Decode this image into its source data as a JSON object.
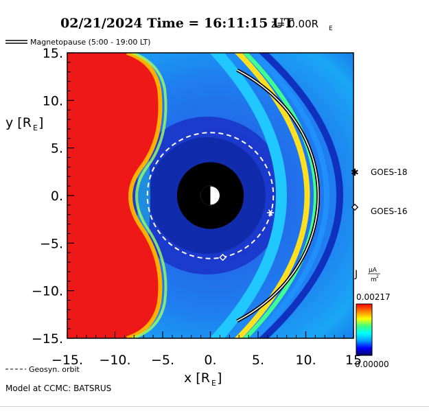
{
  "header": {
    "title": "02/21/2024 Time = 16:11:15 UT",
    "z_label": "z= 0.00R",
    "z_sub": "E"
  },
  "legend": {
    "magnetopause": "Magnetopause (5:00 - 19:00 LT)",
    "geosyn": "Geosyn. orbit",
    "goes18": "GOES-18",
    "goes16": "GOES-16"
  },
  "colorbar": {
    "label": "J",
    "unit_num": "μA",
    "unit_den": "m",
    "unit_den_sup": "2",
    "max_label": "0.00217",
    "min_label": "0.00000",
    "colors": [
      "#000060",
      "#0000ff",
      "#00a0ff",
      "#00ffff",
      "#40ff80",
      "#ffff00",
      "#ff8000",
      "#ff0000"
    ]
  },
  "footer": {
    "model": "Model at CCMC: BATSRUS"
  },
  "chart_data": {
    "type": "heatmap",
    "title": "02/21/2024 Time = 16:11:15 UT",
    "xlabel": "x [R_E]",
    "ylabel": "y [R_E]",
    "xlim": [
      -15,
      15
    ],
    "ylim": [
      -15,
      15
    ],
    "x_ticks": [
      -15,
      -10,
      -5,
      0,
      5,
      10,
      15
    ],
    "x_tick_labels": [
      "−15.",
      "−10.",
      "−5.",
      "0.",
      "5.",
      "10.",
      "15"
    ],
    "y_ticks": [
      15,
      10,
      5,
      0,
      -5,
      -10,
      -15
    ],
    "y_tick_labels": [
      "15.",
      "10.",
      "5.",
      "0.",
      "−5.",
      "−10.",
      "−15."
    ],
    "colorbar_range": [
      0.0,
      0.00217
    ],
    "earth_radius": 3.5,
    "geosyn_radius": 6.6,
    "magnetopause_standoff": 11.3,
    "goes18": {
      "x": 6.3,
      "y": -1.8
    },
    "goes16": {
      "x": 1.3,
      "y": -6.5
    }
  }
}
